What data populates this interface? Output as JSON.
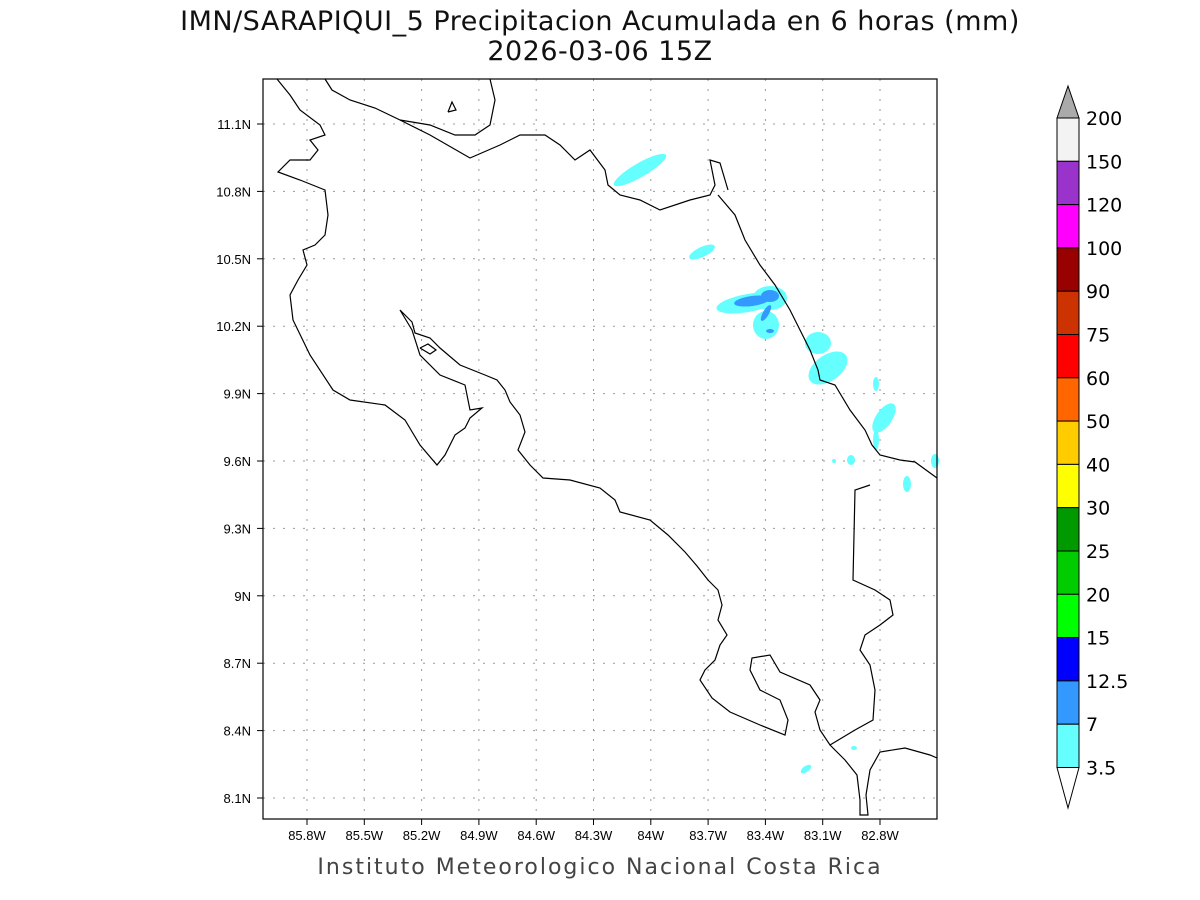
{
  "title": {
    "line1": "IMN/SARAPIQUI_5 Precipitacion Acumulada en 6 horas (mm)",
    "line2": "2026-03-06 15Z"
  },
  "credit": "Instituto Meteorologico Nacional Costa Rica",
  "map": {
    "lon_ticks": [
      "85.8W",
      "85.5W",
      "85.2W",
      "84.9W",
      "84.6W",
      "84.3W",
      "84W",
      "83.7W",
      "83.4W",
      "83.1W",
      "82.8W"
    ],
    "lat_ticks": [
      "11.1N",
      "10.8N",
      "10.5N",
      "10.2N",
      "9.9N",
      "9.6N",
      "9.3N",
      "9N",
      "8.7N",
      "8.4N",
      "8.1N"
    ],
    "grid": "dotted"
  },
  "colorbar": {
    "labels": [
      "200",
      "150",
      "120",
      "100",
      "90",
      "75",
      "60",
      "50",
      "40",
      "30",
      "25",
      "20",
      "15",
      "12.5",
      "7",
      "3.5"
    ],
    "colors": [
      "#f3f3f3",
      "#9933cc",
      "#ff00ff",
      "#990000",
      "#cc3300",
      "#ff0000",
      "#ff6600",
      "#ffcc00",
      "#ffff00",
      "#009900",
      "#00cc00",
      "#00ff00",
      "#0000ff",
      "#3399ff",
      "#66ffff"
    ],
    "over_color": "#aaaaaa",
    "under_color": "#ffffff"
  }
}
